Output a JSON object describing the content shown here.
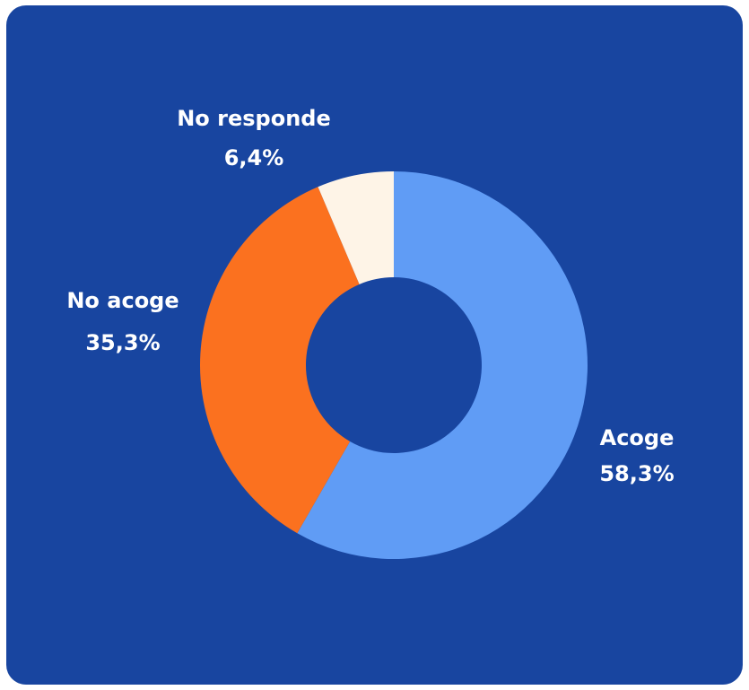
{
  "chart_data": {
    "type": "pie",
    "variant": "donut",
    "title": "",
    "slices": [
      {
        "label": "Acoge",
        "value": 58.3,
        "value_label": "58,3%",
        "color": "#609cf5"
      },
      {
        "label": "No acoge",
        "value": 35.3,
        "value_label": "35,3%",
        "color": "#fb711f"
      },
      {
        "label": "No responde",
        "value": 6.4,
        "value_label": "6,4%",
        "color": "#fef4e7"
      }
    ],
    "legend": "none",
    "start": "top",
    "direction": "clockwise"
  },
  "colors": {
    "background": "#1845a0",
    "label_text": "#ffffff"
  }
}
